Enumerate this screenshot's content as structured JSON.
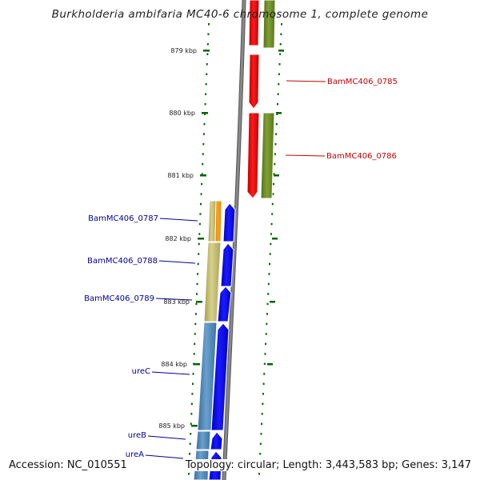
{
  "title": "Burkholderia ambifaria MC40-6 chromosome 1, complete genome",
  "ticks": [
    {
      "label": "879 kbp"
    },
    {
      "label": "880 kbp"
    },
    {
      "label": "881 kbp"
    },
    {
      "label": "882 kbp"
    },
    {
      "label": "883 kbp"
    },
    {
      "label": "884 kbp"
    },
    {
      "label": "885 kbp"
    }
  ],
  "genes": [
    {
      "name": "BamMC406_0785",
      "strand": "reverse",
      "color": "#cc0000"
    },
    {
      "name": "BamMC406_0786",
      "strand": "reverse",
      "color": "#cc0000"
    },
    {
      "name": "BamMC406_0787",
      "strand": "forward",
      "color": "#000099"
    },
    {
      "name": "BamMC406_0788",
      "strand": "forward",
      "color": "#000099"
    },
    {
      "name": "BamMC406_0789",
      "strand": "forward",
      "color": "#000099"
    },
    {
      "name": "ureC",
      "strand": "forward",
      "color": "#000099"
    },
    {
      "name": "ureB",
      "strand": "forward",
      "color": "#000099"
    },
    {
      "name": "ureA",
      "strand": "forward",
      "color": "#000099"
    }
  ],
  "colors": {
    "forward_cds": "#0000ee",
    "reverse_cds": "#ee0000",
    "cog_olive": "#6b8e23",
    "cog_tan": "#bdb76b",
    "cog_orange": "#ff8c00",
    "cog_steelblue": "#4682b4",
    "backbone": "#888888",
    "tick_green": "#006400"
  },
  "footer": {
    "accession": "Accession: NC_010551",
    "summary": "Topology: circular; Length: 3,443,583 bp; Genes: 3,147"
  }
}
